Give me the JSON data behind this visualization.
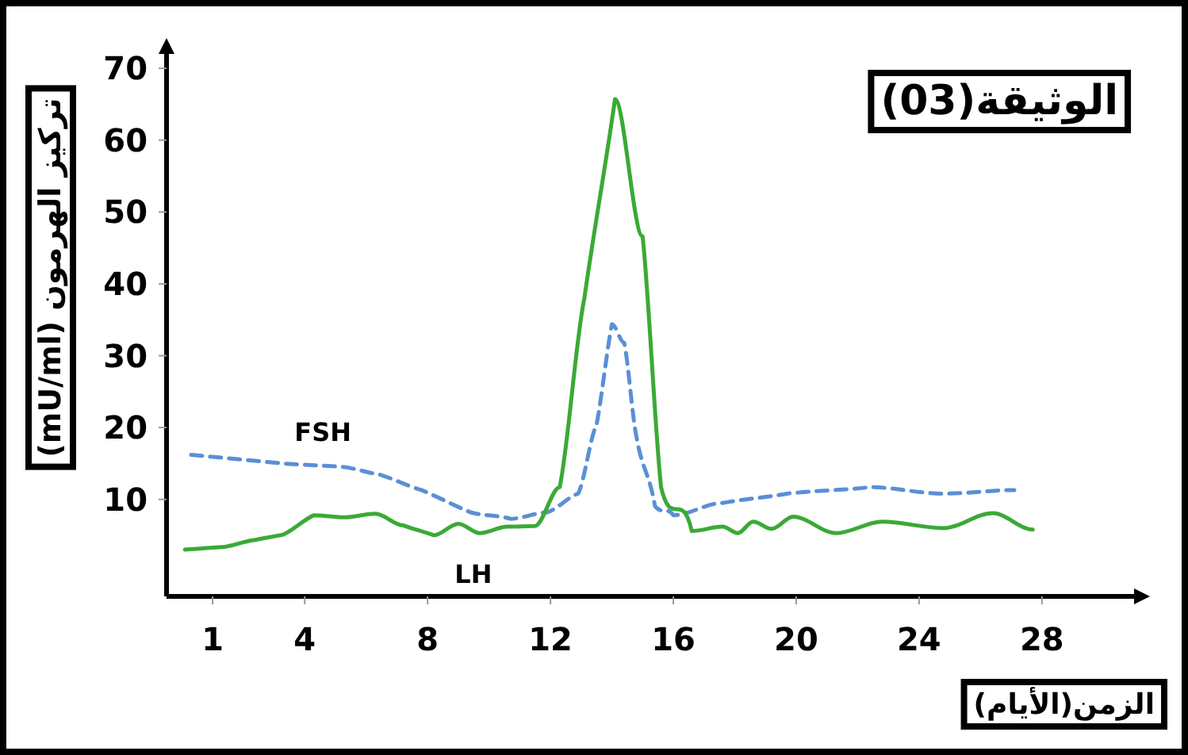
{
  "chart_data": {
    "type": "line",
    "title": "الوثيقة(03)",
    "xlabel": "الزمن(الأيام)",
    "ylabel": "تركيز الهرمون (mU/ml)",
    "xlim": [
      -0.5,
      31
    ],
    "ylim": [
      -3.5,
      72
    ],
    "xticks": [
      1,
      4,
      8,
      12,
      16,
      20,
      24,
      28
    ],
    "yticks": [
      10,
      20,
      30,
      40,
      50,
      60,
      70
    ],
    "grid": false,
    "legend": false,
    "marker": "none",
    "series": [
      {
        "name": "FSH",
        "color": "#5b8fd6",
        "line_style": "dashed",
        "x": [
          0.3,
          3.3,
          5.3,
          6.4,
          7.8,
          9.4,
          10.7,
          11.9,
          12.9,
          13.5,
          14.0,
          14.4,
          14.8,
          15.4,
          16.0,
          17.6,
          19.7,
          22.4,
          24.8,
          27.1
        ],
        "values": [
          16.2,
          15.0,
          14.5,
          13.5,
          11.3,
          8.2,
          7.3,
          8.2,
          10.8,
          20.4,
          34.4,
          31.8,
          18.7,
          9.1,
          7.8,
          9.5,
          10.8,
          11.7,
          10.8,
          11.3
        ]
      },
      {
        "name": "LH",
        "color": "#3aaa35",
        "line_style": "solid",
        "x": [
          0.1,
          1.4,
          2.3,
          3.3,
          4.3,
          5.3,
          6.3,
          7.2,
          8.2,
          9.0,
          9.7,
          10.6,
          11.5,
          12.3,
          13.1,
          14.1,
          15.0,
          15.6,
          16.6,
          17.6,
          18.1,
          18.6,
          19.2,
          19.9,
          21.3,
          22.8,
          24.8,
          26.4,
          27.7
        ],
        "values": [
          3.0,
          3.4,
          4.3,
          5.1,
          7.8,
          7.5,
          8.0,
          6.4,
          5.0,
          6.6,
          5.3,
          6.2,
          6.3,
          11.7,
          37.9,
          65.7,
          46.6,
          11.7,
          5.6,
          6.2,
          5.3,
          6.9,
          5.9,
          7.6,
          5.3,
          6.9,
          6.0,
          8.1,
          5.8
        ]
      }
    ]
  }
}
